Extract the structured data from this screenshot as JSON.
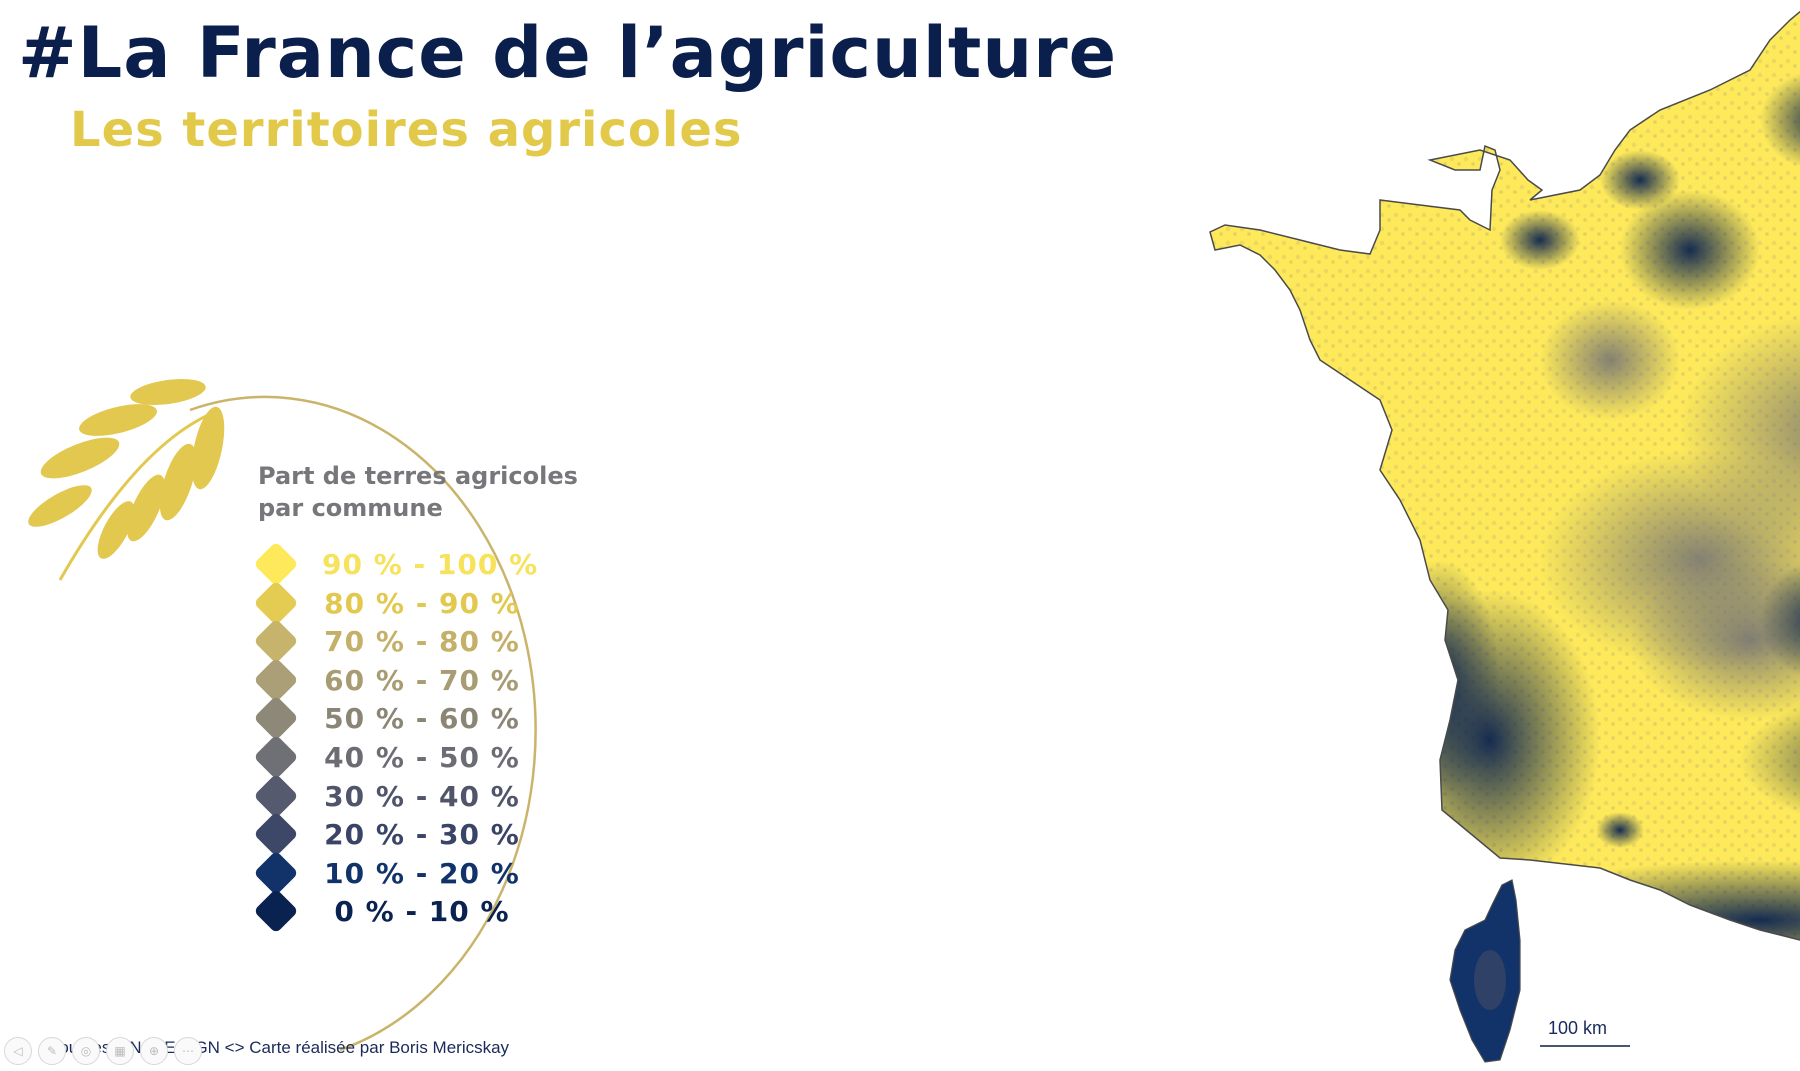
{
  "header": {
    "title": "#La France de l’agriculture",
    "subtitle": "Les territoires agricoles"
  },
  "legend": {
    "title_line1": "Part de terres agricoles",
    "title_line2": "par commune",
    "classes": [
      {
        "label": "90 % - 100 %",
        "color": "#fde95a",
        "text_color": "#f7e25c"
      },
      {
        "label": "80 % - 90 %",
        "color": "#e4cb52",
        "text_color": "#e2c84e"
      },
      {
        "label": "70 % - 80 %",
        "color": "#c7b46c",
        "text_color": "#c4b068"
      },
      {
        "label": "60 % - 70 %",
        "color": "#aa9f77",
        "text_color": "#a89c72"
      },
      {
        "label": "50 % - 60 %",
        "color": "#8d8878",
        "text_color": "#8a8574"
      },
      {
        "label": "40 % - 50 %",
        "color": "#6f6f76",
        "text_color": "#6c6c74"
      },
      {
        "label": "30 % - 40 %",
        "color": "#565a6e",
        "text_color": "#50556c"
      },
      {
        "label": "20 % - 30 %",
        "color": "#3d4767",
        "text_color": "#3a4466"
      },
      {
        "label": "10 % - 20 %",
        "color": "#12336a",
        "text_color": "#12336a"
      },
      {
        "label": "0 % - 10 %",
        "color": "#0a2250",
        "text_color": "#0a2250"
      }
    ]
  },
  "map": {
    "scale_label": "100 km",
    "palette": {
      "yellow": "#fde95a",
      "yellow_mid": "#e4cb52",
      "grey": "#8d8878",
      "navy": "#12336a",
      "navy_dark": "#0a2250"
    }
  },
  "footer": {
    "sources": "Sources : INSEE / IGN  <> Carte réalisée par Boris Mericskay"
  },
  "accent_colors": {
    "title": "#0b1f4d",
    "subtitle": "#e3c94a",
    "ornament": "#e2c84e",
    "legend_arc": "#c9b46a"
  }
}
